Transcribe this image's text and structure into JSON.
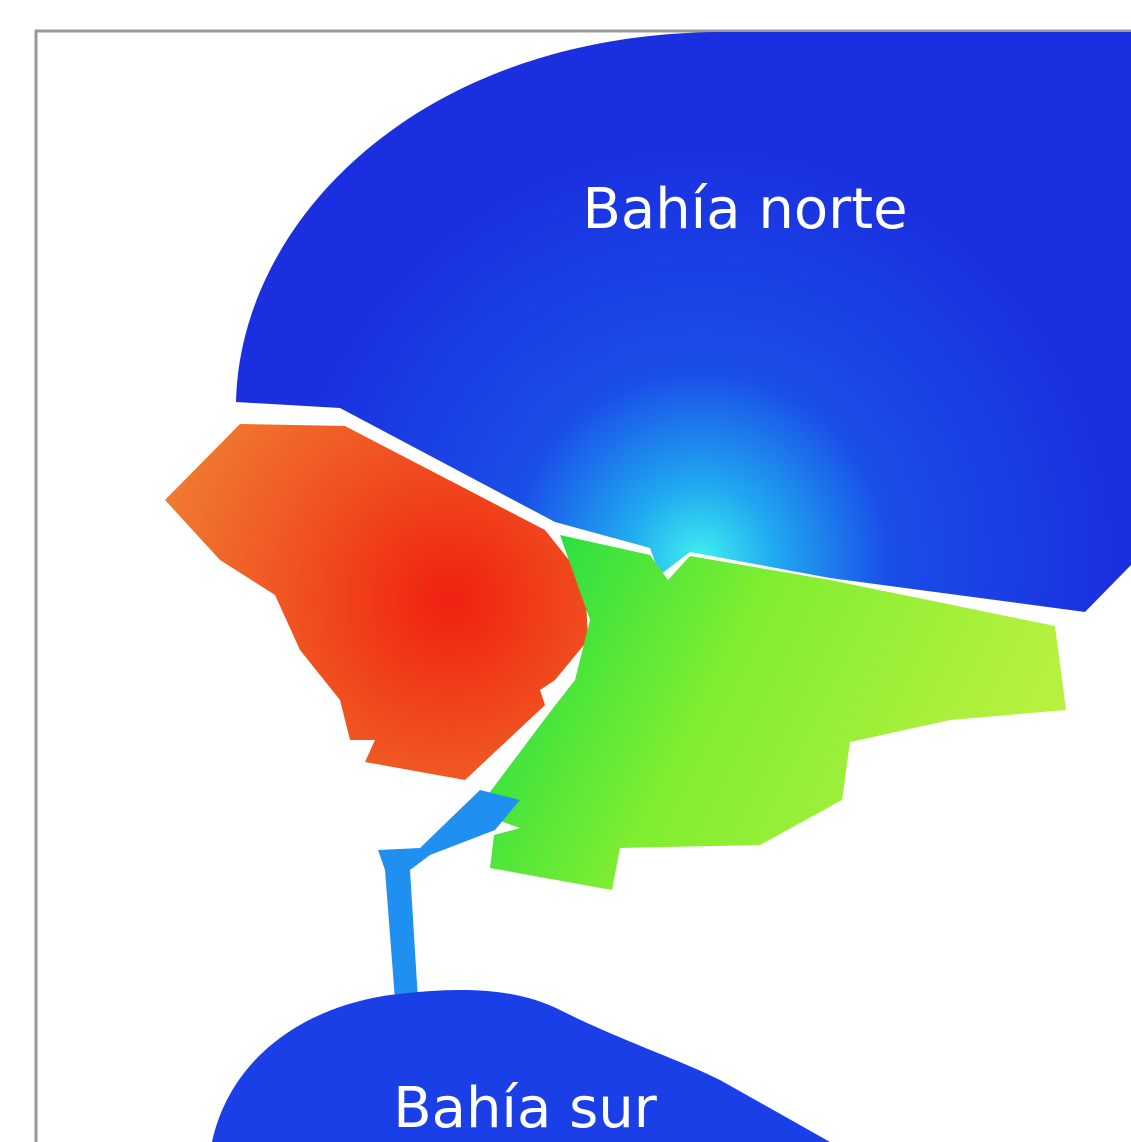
{
  "map": {
    "labels": [
      "Bahía norte",
      "Bahía sur"
    ]
  }
}
